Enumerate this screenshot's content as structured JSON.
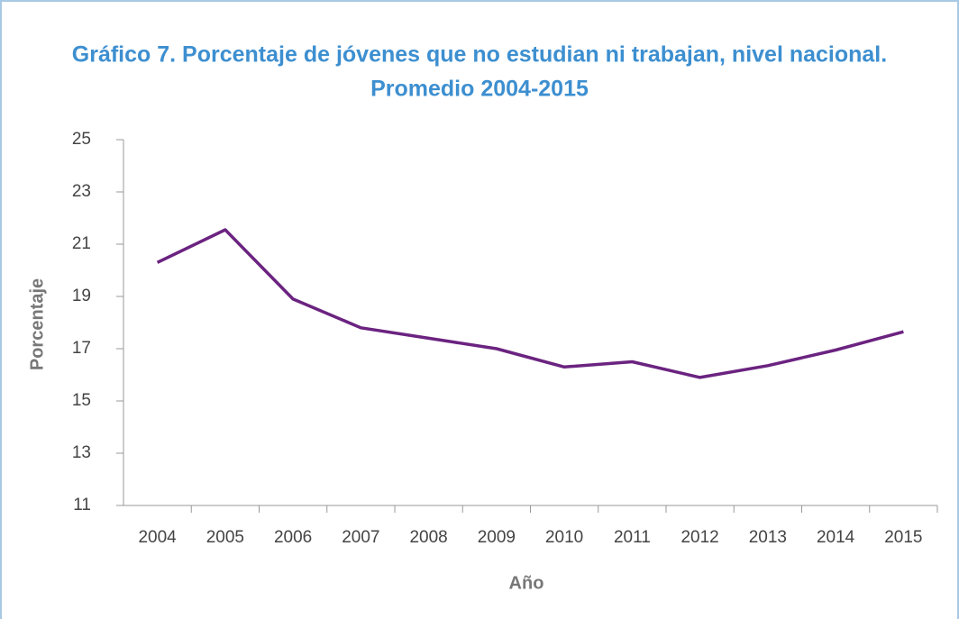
{
  "chart_data": {
    "type": "line",
    "title": "Gráfico 7. Porcentaje de jóvenes que no estudian ni trabajan, nivel nacional.",
    "subtitle": "Promedio 2004-2015",
    "x_label": "Año",
    "y_label": "Porcentaje",
    "categories": [
      "2004",
      "2005",
      "2006",
      "2007",
      "2008",
      "2009",
      "2010",
      "2011",
      "2012",
      "2013",
      "2014",
      "2015"
    ],
    "series": [
      {
        "name": "Porcentaje",
        "color": "#6b2380",
        "values": [
          20.3,
          21.55,
          18.9,
          17.8,
          17.4,
          17.0,
          16.3,
          16.5,
          15.9,
          16.35,
          16.95,
          17.65
        ]
      }
    ],
    "ylim": [
      11,
      25
    ],
    "yticks": [
      11,
      13,
      15,
      17,
      19,
      21,
      23,
      25
    ],
    "grid": false
  }
}
